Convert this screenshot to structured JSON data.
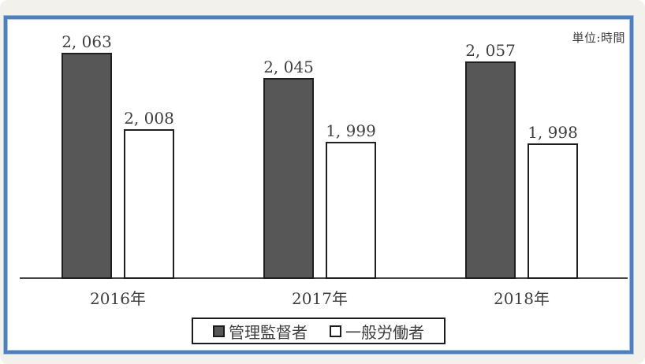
{
  "frame": {
    "unit_label": "単位:時間"
  },
  "legend": {
    "items": [
      {
        "label": "管理監督者",
        "swatch": "dark"
      },
      {
        "label": "一般労働者",
        "swatch": "white"
      }
    ]
  },
  "colors": {
    "page_background": "#f2f1ec",
    "frame_border": "#4e80bc",
    "dark_bar": "#575757",
    "bar_border": "#1f1f1f",
    "text": "#3f3f3f"
  },
  "chart_data": {
    "type": "bar",
    "title": "",
    "unit_label": "単位:時間",
    "categories": [
      "2016年",
      "2017年",
      "2018年"
    ],
    "series": [
      {
        "name": "管理監督者",
        "style": "dark",
        "values": [
          2063,
          2045,
          2057
        ],
        "value_labels": [
          "2, 063",
          "2, 045",
          "2, 057"
        ]
      },
      {
        "name": "一般労働者",
        "style": "white",
        "values": [
          2008,
          1999,
          1998
        ],
        "value_labels": [
          "2, 008",
          "1, 999",
          "1, 998"
        ]
      }
    ],
    "value_axis": {
      "min": 1900,
      "max": 2100,
      "visible": false
    },
    "grid": false,
    "data_labels": true,
    "legend_position": "bottom"
  }
}
